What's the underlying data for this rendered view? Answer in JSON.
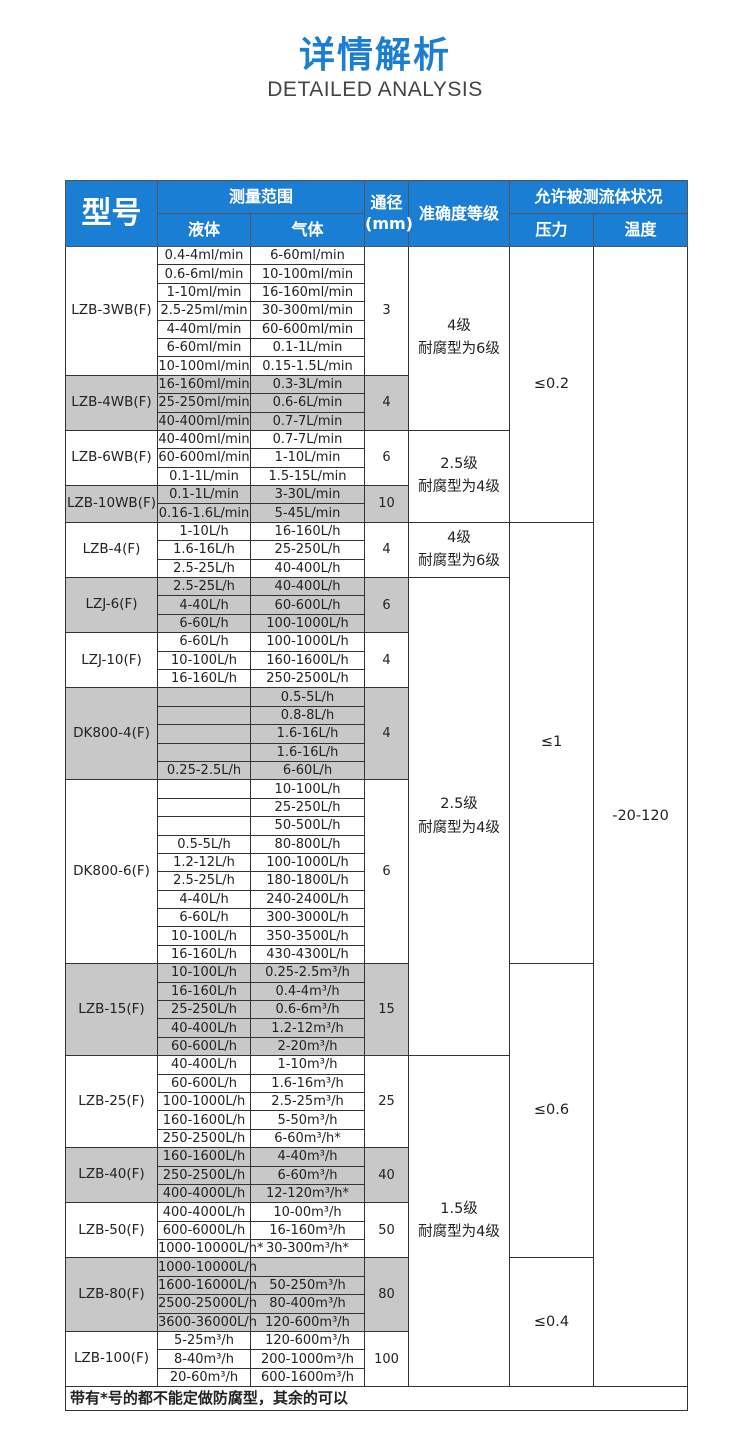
{
  "page": {
    "title": "详情解析",
    "subtitle": "DETAILED ANALYSIS"
  },
  "colors": {
    "header_blue": "#1a7fd4",
    "gray_row": "#c8c8c8"
  },
  "header": {
    "model": "型号",
    "range": "测量范围",
    "liquid": "液体",
    "gas": "气体",
    "diameter": "通径(mm)",
    "accuracy": "准确度等级",
    "conditions": "允许被测流体状况",
    "pressure": "压力",
    "temperature": "温度"
  },
  "groups": [
    {
      "model": "LZB-3WB(F)",
      "diameter": "3",
      "gray": false,
      "rows": [
        [
          "0.4-4ml/min",
          "6-60ml/min"
        ],
        [
          "0.6-6ml/min",
          "10-100ml/min"
        ],
        [
          "1-10ml/min",
          "16-160ml/min"
        ],
        [
          "2.5-25ml/min",
          "30-300ml/min"
        ],
        [
          "4-40ml/min",
          "60-600ml/min"
        ],
        [
          "6-60ml/min",
          "0.1-1L/min"
        ],
        [
          "10-100ml/min",
          "0.15-1.5L/min"
        ]
      ]
    },
    {
      "model": "LZB-4WB(F)",
      "diameter": "4",
      "gray": true,
      "rows": [
        [
          "16-160ml/min",
          "0.3-3L/min"
        ],
        [
          "25-250ml/min",
          "0.6-6L/min"
        ],
        [
          "40-400ml/min",
          "0.7-7L/min"
        ]
      ]
    },
    {
      "model": "LZB-6WB(F)",
      "diameter": "6",
      "gray": false,
      "rows": [
        [
          "40-400ml/min",
          "0.7-7L/min"
        ],
        [
          "60-600ml/min",
          "1-10L/min"
        ],
        [
          "0.1-1L/min",
          "1.5-15L/min"
        ]
      ]
    },
    {
      "model": "LZB-10WB(F)",
      "diameter": "10",
      "gray": true,
      "rows": [
        [
          "0.1-1L/min",
          "3-30L/min"
        ],
        [
          "0.16-1.6L/min",
          "5-45L/min"
        ]
      ]
    },
    {
      "model": "LZB-4(F)",
      "diameter": "4",
      "gray": false,
      "rows": [
        [
          "1-10L/h",
          "16-160L/h"
        ],
        [
          "1.6-16L/h",
          "25-250L/h"
        ],
        [
          "2.5-25L/h",
          "40-400L/h"
        ]
      ]
    },
    {
      "model": "LZJ-6(F)",
      "diameter": "6",
      "gray": true,
      "rows": [
        [
          "2.5-25L/h",
          "40-400L/h"
        ],
        [
          "4-40L/h",
          "60-600L/h"
        ],
        [
          "6-60L/h",
          "100-1000L/h"
        ]
      ]
    },
    {
      "model": "LZJ-10(F)",
      "diameter": "4",
      "gray": false,
      "rows": [
        [
          "6-60L/h",
          "100-1000L/h"
        ],
        [
          "10-100L/h",
          "160-1600L/h"
        ],
        [
          "16-160L/h",
          "250-2500L/h"
        ]
      ]
    },
    {
      "model": "DK800-4(F)",
      "diameter": "4",
      "gray": true,
      "rows": [
        [
          "",
          "0.5-5L/h"
        ],
        [
          "",
          "0.8-8L/h"
        ],
        [
          "",
          "1.6-16L/h"
        ],
        [
          "",
          "1.6-16L/h"
        ],
        [
          "0.25-2.5L/h",
          "6-60L/h"
        ]
      ]
    },
    {
      "model": "DK800-6(F)",
      "diameter": "6",
      "gray": false,
      "rows": [
        [
          "",
          "10-100L/h"
        ],
        [
          "",
          "25-250L/h"
        ],
        [
          "",
          "50-500L/h"
        ],
        [
          "0.5-5L/h",
          "80-800L/h"
        ],
        [
          "1.2-12L/h",
          "100-1000L/h"
        ],
        [
          "2.5-25L/h",
          "180-1800L/h"
        ],
        [
          "4-40L/h",
          "240-2400L/h"
        ],
        [
          "6-60L/h",
          "300-3000L/h"
        ],
        [
          "10-100L/h",
          "350-3500L/h"
        ],
        [
          "16-160L/h",
          "430-4300L/h"
        ]
      ]
    },
    {
      "model": "LZB-15(F)",
      "diameter": "15",
      "gray": true,
      "rows": [
        [
          "10-100L/h",
          "0.25-2.5m³/h"
        ],
        [
          "16-160L/h",
          "0.4-4m³/h"
        ],
        [
          "25-250L/h",
          "0.6-6m³/h"
        ],
        [
          "40-400L/h",
          "1.2-12m³/h"
        ],
        [
          "60-600L/h",
          "2-20m³/h"
        ]
      ]
    },
    {
      "model": "LZB-25(F)",
      "diameter": "25",
      "gray": false,
      "rows": [
        [
          "40-400L/h",
          "1-10m³/h"
        ],
        [
          "60-600L/h",
          "1.6-16m³/h"
        ],
        [
          "100-1000L/h",
          "2.5-25m³/h"
        ],
        [
          "160-1600L/h",
          "5-50m³/h"
        ],
        [
          "250-2500L/h",
          "6-60m³/h*"
        ]
      ]
    },
    {
      "model": "LZB-40(F)",
      "diameter": "40",
      "gray": true,
      "rows": [
        [
          "160-1600L/h",
          "4-40m³/h"
        ],
        [
          "250-2500L/h",
          "6-60m³/h"
        ],
        [
          "400-4000L/h",
          "12-120m³/h*"
        ]
      ]
    },
    {
      "model": "LZB-50(F)",
      "diameter": "50",
      "gray": false,
      "rows": [
        [
          "400-4000L/h",
          "10-00m³/h"
        ],
        [
          "600-6000L/h",
          "16-160m³/h"
        ],
        [
          "1000-10000L/h*",
          "30-300m³/h*"
        ]
      ]
    },
    {
      "model": "LZB-80(F)",
      "diameter": "80",
      "gray": true,
      "rows": [
        [
          "1000-10000L/h",
          ""
        ],
        [
          "1600-16000L/h",
          "50-250m³/h"
        ],
        [
          "2500-25000L/h",
          "80-400m³/h"
        ],
        [
          "3600-36000L/h",
          "120-600m³/h"
        ]
      ]
    },
    {
      "model": "LZB-100(F)",
      "diameter": "100",
      "gray": false,
      "rows": [
        [
          "5-25m³/h",
          "120-600m³/h"
        ],
        [
          "8-40m³/h",
          "200-1000m³/h"
        ],
        [
          "20-60m³/h",
          "600-1600m³/h"
        ]
      ]
    }
  ],
  "accuracy": [
    {
      "line1": "4级",
      "line2": "耐腐型为6级",
      "models": [
        "LZB-3WB(F)",
        "LZB-4WB(F)"
      ]
    },
    {
      "line1": "2.5级",
      "line2": "耐腐型为4级",
      "models": [
        "LZB-6WB(F)",
        "LZB-10WB(F)"
      ]
    },
    {
      "line1": "4级",
      "line2": "耐腐型为6级",
      "models": [
        "LZB-4(F)"
      ]
    },
    {
      "line1": "2.5级",
      "line2": "耐腐型为4级",
      "models": [
        "LZJ-6(F)",
        "LZJ-10(F)",
        "DK800-4(F)",
        "DK800-6(F)",
        "LZB-15(F)"
      ]
    },
    {
      "line1": "1.5级",
      "line2": "耐腐型为4级",
      "models": [
        "LZB-25(F)",
        "LZB-40(F)",
        "LZB-50(F)",
        "LZB-80(F)",
        "LZB-100(F)"
      ]
    }
  ],
  "pressure": [
    {
      "value": "≤0.2",
      "models": [
        "LZB-3WB(F)",
        "LZB-4WB(F)",
        "LZB-6WB(F)",
        "LZB-10WB(F)"
      ]
    },
    {
      "value": "≤1",
      "models": [
        "LZB-4(F)",
        "LZJ-6(F)",
        "LZJ-10(F)",
        "DK800-4(F)",
        "DK800-6(F)"
      ]
    },
    {
      "value": "≤0.6",
      "models": [
        "LZB-15(F)",
        "LZB-25(F)",
        "LZB-40(F)",
        "LZB-50(F)"
      ]
    },
    {
      "value": "≤0.4",
      "models": [
        "LZB-80(F)",
        "LZB-100(F)"
      ]
    }
  ],
  "temperature": "-20-120",
  "footnote": "带有*号的都不能定做防腐型，其余的可以"
}
